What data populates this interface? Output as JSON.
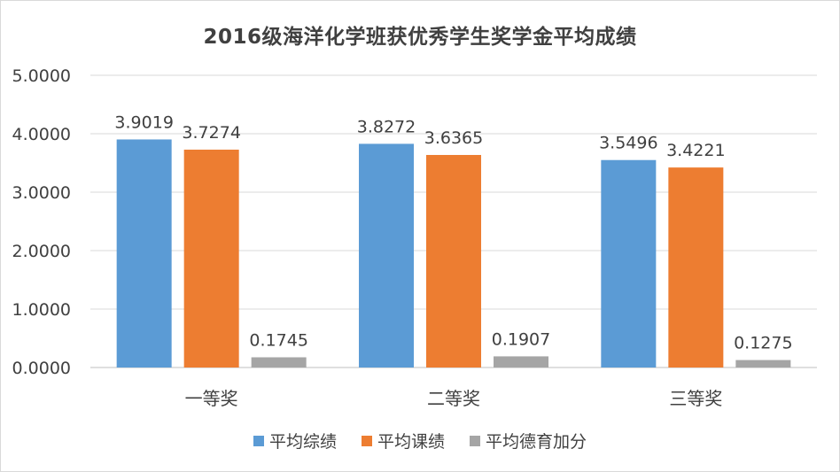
{
  "chart_data": {
    "type": "bar",
    "title": "2016级海洋化学班获优秀学生奖学金平均成绩",
    "categories": [
      "一等奖",
      "二等奖",
      "三等奖"
    ],
    "series": [
      {
        "name": "平均综绩",
        "values": [
          3.9019,
          3.8272,
          3.5496
        ],
        "labels": [
          "3.9019",
          "3.8272",
          "3.5496"
        ],
        "color": "#5b9bd5"
      },
      {
        "name": "平均课绩",
        "values": [
          3.7274,
          3.6365,
          3.4221
        ],
        "labels": [
          "3.7274",
          "3.6365",
          "3.4221"
        ],
        "color": "#ed7d31"
      },
      {
        "name": "平均德育加分",
        "values": [
          0.1745,
          0.1907,
          0.1275
        ],
        "labels": [
          "0.1745",
          "0.1907",
          "0.1275"
        ],
        "color": "#a5a5a5"
      }
    ],
    "ylim": [
      0,
      5
    ],
    "yticks": [
      "0.0000",
      "1.0000",
      "2.0000",
      "3.0000",
      "4.0000",
      "5.0000"
    ],
    "grid": true,
    "legend": "bottom"
  }
}
